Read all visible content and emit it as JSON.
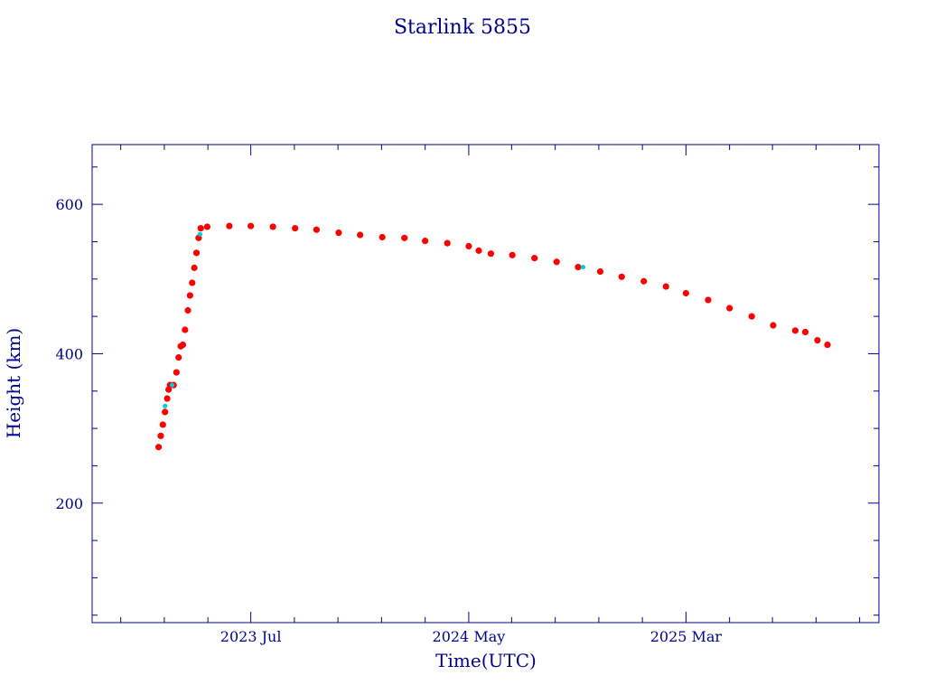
{
  "chart_data": {
    "type": "scatter",
    "title": "Starlink 5855",
    "xlabel": "Time(UTC)",
    "ylabel": "Height (km)",
    "x_unit": "date",
    "xlim": [
      "2022-11-21",
      "2025-11-26"
    ],
    "ylim": [
      40,
      680
    ],
    "y_ticks": [
      200,
      400,
      600
    ],
    "y_minor_step": 50,
    "x_ticks": [
      {
        "date": "2023-07-01",
        "label": "2023 Jul"
      },
      {
        "date": "2024-05-01",
        "label": "2024 May"
      },
      {
        "date": "2025-03-01",
        "label": "2025 Mar"
      }
    ],
    "x_minor_ticks": [
      "2022-12-31",
      "2023-03-02",
      "2023-05-02",
      "2023-08-31",
      "2023-10-31",
      "2023-12-31",
      "2024-03-01",
      "2024-06-30",
      "2024-08-30",
      "2024-10-30",
      "2024-12-30",
      "2025-05-01",
      "2025-06-30",
      "2025-08-30",
      "2025-10-30"
    ],
    "grid": false,
    "marker_color": "#ff0000",
    "highlight_color": "#00cfd6",
    "series": [
      {
        "points": [
          [
            "2023-02-22",
            275
          ],
          [
            "2023-02-25",
            290
          ],
          [
            "2023-02-28",
            305
          ],
          [
            "2023-03-03",
            322
          ],
          [
            "2023-03-06",
            340
          ],
          [
            "2023-03-08",
            352
          ],
          [
            "2023-03-10",
            358
          ],
          [
            "2023-03-15",
            358
          ],
          [
            "2023-03-19",
            375
          ],
          [
            "2023-03-22",
            395
          ],
          [
            "2023-03-25",
            410
          ],
          [
            "2023-03-28",
            412
          ],
          [
            "2023-03-31",
            432
          ],
          [
            "2023-04-04",
            458
          ],
          [
            "2023-04-07",
            478
          ],
          [
            "2023-04-10",
            495
          ],
          [
            "2023-04-13",
            515
          ],
          [
            "2023-04-16",
            535
          ],
          [
            "2023-04-19",
            555
          ],
          [
            "2023-04-22",
            568
          ],
          [
            "2023-05-01",
            570
          ],
          [
            "2023-06-01",
            571
          ],
          [
            "2023-07-01",
            571
          ],
          [
            "2023-08-01",
            570
          ],
          [
            "2023-09-01",
            568
          ],
          [
            "2023-10-01",
            566
          ],
          [
            "2023-11-01",
            562
          ],
          [
            "2023-12-01",
            559
          ],
          [
            "2024-01-01",
            556
          ],
          [
            "2024-02-01",
            555
          ],
          [
            "2024-03-01",
            551
          ],
          [
            "2024-04-01",
            548
          ],
          [
            "2024-05-01",
            544
          ],
          [
            "2024-05-15",
            538
          ],
          [
            "2024-06-01",
            534
          ],
          [
            "2024-07-01",
            532
          ],
          [
            "2024-08-01",
            528
          ],
          [
            "2024-09-01",
            523
          ],
          [
            "2024-10-01",
            516
          ],
          [
            "2024-11-01",
            510
          ],
          [
            "2024-12-01",
            503
          ],
          [
            "2025-01-01",
            497
          ],
          [
            "2025-02-01",
            490
          ],
          [
            "2025-03-01",
            481
          ],
          [
            "2025-04-01",
            472
          ],
          [
            "2025-05-01",
            461
          ],
          [
            "2025-06-01",
            450
          ],
          [
            "2025-07-01",
            438
          ],
          [
            "2025-08-01",
            431
          ],
          [
            "2025-08-15",
            429
          ],
          [
            "2025-09-01",
            418
          ],
          [
            "2025-09-15",
            412
          ]
        ]
      }
    ],
    "highlight_points": [
      [
        "2023-03-03",
        330
      ],
      [
        "2023-03-13",
        358
      ],
      [
        "2023-04-21",
        560
      ],
      [
        "2024-10-08",
        516
      ]
    ]
  }
}
